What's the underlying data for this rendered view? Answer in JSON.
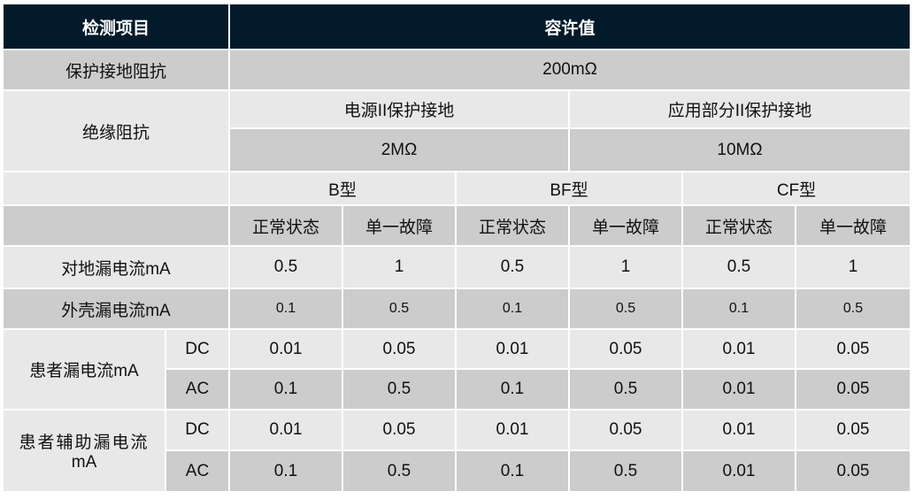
{
  "header": {
    "item": "检测项目",
    "tolerance": "容许值"
  },
  "ground_impedance": {
    "label": "保护接地阻抗",
    "value": "200mΩ"
  },
  "insulation": {
    "label": "绝缘阻抗",
    "power_label": "电源II保护接地",
    "power_value": "2MΩ",
    "applied_label": "应用部分II保护接地",
    "applied_value": "10MΩ"
  },
  "types": [
    "B型",
    "BF型",
    "CF型"
  ],
  "states": [
    "正常状态",
    "单一故障",
    "正常状态",
    "单一故障",
    "正常状态",
    "单一故障"
  ],
  "earth_leakage": {
    "label": "对地漏电流mA",
    "values": [
      "0.5",
      "1",
      "0.5",
      "1",
      "0.5",
      "1"
    ]
  },
  "enclosure_leakage": {
    "label": "外壳漏电流mA",
    "values": [
      "0.1",
      "0.5",
      "0.1",
      "0.5",
      "0.1",
      "0.5"
    ]
  },
  "patient_leakage": {
    "label": "患者漏电流mA",
    "dc_label": "DC",
    "dc": [
      "0.01",
      "0.05",
      "0.01",
      "0.05",
      "0.01",
      "0.05"
    ],
    "ac_label": "AC",
    "ac": [
      "0.1",
      "0.5",
      "0.1",
      "0.5",
      "0.01",
      "0.05"
    ]
  },
  "patient_aux_leakage": {
    "label": "患者辅助漏电流",
    "unit": "mA",
    "dc_label": "DC",
    "dc": [
      "0.01",
      "0.05",
      "0.01",
      "0.05",
      "0.01",
      "0.05"
    ],
    "ac_label": "AC",
    "ac": [
      "0.1",
      "0.5",
      "0.1",
      "0.5",
      "0.01",
      "0.05"
    ]
  }
}
